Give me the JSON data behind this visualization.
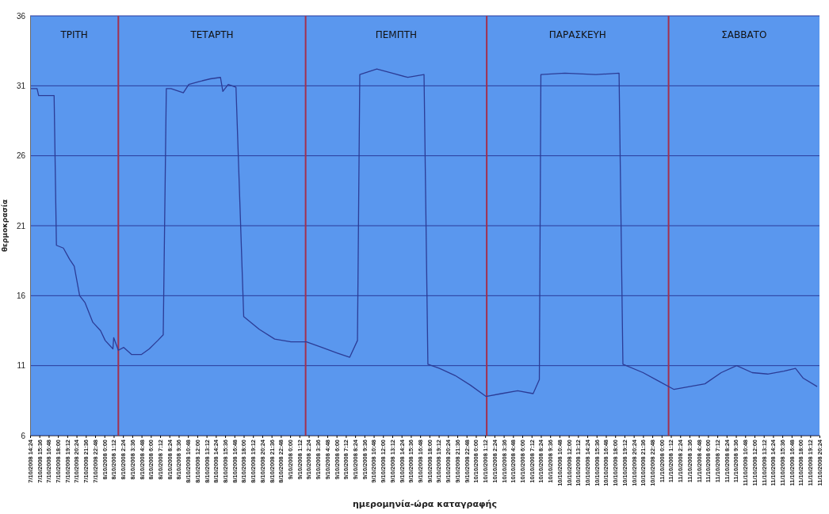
{
  "chart_data": {
    "type": "line",
    "xlabel": "ημερομηνία-ώρα καταγραφής",
    "ylabel": "θερμοκρασία",
    "x": [
      "2008-10-07T14:30",
      "2008-10-07T15:18",
      "2008-10-07T15:30",
      "2008-10-07T17:30",
      "2008-10-07T17:48",
      "2008-10-07T18:42",
      "2008-10-07T19:30",
      "2008-10-07T20:06",
      "2008-10-07T20:48",
      "2008-10-07T21:30",
      "2008-10-07T22:30",
      "2008-10-07T23:30",
      "2008-10-08T00:06",
      "2008-10-08T01:06",
      "2008-10-08T01:12",
      "2008-10-08T01:48",
      "2008-10-08T02:30",
      "2008-10-08T03:30",
      "2008-10-08T04:48",
      "2008-10-08T05:48",
      "2008-10-08T06:54",
      "2008-10-08T07:36",
      "2008-10-08T08:00",
      "2008-10-08T08:36",
      "2008-10-08T10:12",
      "2008-10-08T10:54",
      "2008-10-08T12:12",
      "2008-10-08T13:42",
      "2008-10-08T15:00",
      "2008-10-08T15:18",
      "2008-10-08T16:00",
      "2008-10-08T17:00",
      "2008-10-08T18:00",
      "2008-10-08T20:00",
      "2008-10-08T22:00",
      "2008-10-09T00:06",
      "2008-10-09T02:06",
      "2008-10-09T04:06",
      "2008-10-09T06:06",
      "2008-10-09T07:42",
      "2008-10-09T08:42",
      "2008-10-09T09:00",
      "2008-10-09T11:12",
      "2008-10-09T13:12",
      "2008-10-09T15:12",
      "2008-10-09T17:18",
      "2008-10-09T17:48",
      "2008-10-09T19:18",
      "2008-10-09T21:18",
      "2008-10-09T23:18",
      "2008-10-10T01:18",
      "2008-10-10T03:18",
      "2008-10-10T05:24",
      "2008-10-10T07:24",
      "2008-10-10T08:12",
      "2008-10-10T08:24",
      "2008-10-10T11:30",
      "2008-10-10T15:30",
      "2008-10-10T18:30",
      "2008-10-10T19:00",
      "2008-10-10T21:36",
      "2008-10-10T23:36",
      "2008-10-11T01:36",
      "2008-10-11T03:36",
      "2008-10-11T05:36",
      "2008-10-11T07:42",
      "2008-10-11T09:42",
      "2008-10-11T11:42",
      "2008-10-11T13:42",
      "2008-10-11T15:48",
      "2008-10-11T17:18",
      "2008-10-11T18:18",
      "2008-10-11T20:06"
    ],
    "values": [
      30.8,
      30.8,
      30.3,
      30.3,
      19.6,
      19.4,
      18.6,
      18.1,
      16.0,
      15.5,
      14.1,
      13.5,
      12.8,
      12.2,
      13.0,
      12.1,
      12.3,
      11.8,
      11.8,
      12.2,
      12.8,
      13.2,
      30.8,
      30.8,
      30.5,
      31.1,
      31.3,
      31.5,
      31.6,
      30.6,
      31.1,
      30.9,
      14.5,
      13.6,
      12.9,
      12.7,
      12.7,
      12.3,
      11.9,
      11.6,
      12.8,
      31.8,
      32.2,
      31.9,
      31.6,
      31.8,
      11.1,
      10.8,
      10.3,
      9.6,
      8.8,
      9.0,
      9.2,
      9.0,
      10.0,
      31.8,
      31.9,
      31.8,
      31.9,
      11.1,
      10.5,
      9.9,
      9.3,
      9.5,
      9.7,
      10.5,
      11.0,
      10.5,
      10.4,
      10.6,
      10.8,
      10.1,
      9.5
    ],
    "color": "#2c3c96",
    "xlim": [
      "2008-10-07T14:24",
      "2008-10-11T20:24"
    ],
    "ylim": [
      6,
      36
    ],
    "yticks": [
      6,
      11,
      16,
      21,
      26,
      31,
      36
    ],
    "grid": "y",
    "xticks": [
      {
        "value": "2008-10-07T14:24",
        "label": "7/10/2008 14:24"
      },
      {
        "value": "2008-10-07T15:36",
        "label": "7/10/2008 15:36"
      },
      {
        "value": "2008-10-07T16:48",
        "label": "7/10/2008 16:48"
      },
      {
        "value": "2008-10-07T18:00",
        "label": "7/10/2008 18:00"
      },
      {
        "value": "2008-10-07T19:12",
        "label": "7/10/2008 19:12"
      },
      {
        "value": "2008-10-07T20:24",
        "label": "7/10/2008 20:24"
      },
      {
        "value": "2008-10-07T21:36",
        "label": "7/10/2008 21:36"
      },
      {
        "value": "2008-10-07T22:48",
        "label": "7/10/2008 22:48"
      },
      {
        "value": "2008-10-08T00:00",
        "label": "8/10/2008 0:00"
      },
      {
        "value": "2008-10-08T01:12",
        "label": "8/10/2008 1:12"
      },
      {
        "value": "2008-10-08T02:24",
        "label": "8/10/2008 2:24"
      },
      {
        "value": "2008-10-08T03:36",
        "label": "8/10/2008 3:36"
      },
      {
        "value": "2008-10-08T04:48",
        "label": "8/10/2008 4:48"
      },
      {
        "value": "2008-10-08T06:00",
        "label": "8/10/2008 6:00"
      },
      {
        "value": "2008-10-08T07:12",
        "label": "8/10/2008 7:12"
      },
      {
        "value": "2008-10-08T08:24",
        "label": "8/10/2008 8:24"
      },
      {
        "value": "2008-10-08T09:36",
        "label": "8/10/2008 9:36"
      },
      {
        "value": "2008-10-08T10:48",
        "label": "8/10/2008 10:48"
      },
      {
        "value": "2008-10-08T12:00",
        "label": "8/10/2008 12:00"
      },
      {
        "value": "2008-10-08T13:12",
        "label": "8/10/2008 13:12"
      },
      {
        "value": "2008-10-08T14:24",
        "label": "8/10/2008 14:24"
      },
      {
        "value": "2008-10-08T15:36",
        "label": "8/10/2008 15:36"
      },
      {
        "value": "2008-10-08T16:48",
        "label": "8/10/2008 16:48"
      },
      {
        "value": "2008-10-08T18:00",
        "label": "8/10/2008 18:00"
      },
      {
        "value": "2008-10-08T19:12",
        "label": "8/10/2008 19:12"
      },
      {
        "value": "2008-10-08T20:24",
        "label": "8/10/2008 20:24"
      },
      {
        "value": "2008-10-08T21:36",
        "label": "8/10/2008 21:36"
      },
      {
        "value": "2008-10-08T22:48",
        "label": "8/10/2008 22:48"
      },
      {
        "value": "2008-10-09T00:00",
        "label": "9/10/2008 0:00"
      },
      {
        "value": "2008-10-09T01:12",
        "label": "9/10/2008 1:12"
      },
      {
        "value": "2008-10-09T02:24",
        "label": "9/10/2008 2:24"
      },
      {
        "value": "2008-10-09T03:36",
        "label": "9/10/2008 3:36"
      },
      {
        "value": "2008-10-09T04:48",
        "label": "9/10/2008 4:48"
      },
      {
        "value": "2008-10-09T06:00",
        "label": "9/10/2008 6:00"
      },
      {
        "value": "2008-10-09T07:12",
        "label": "9/10/2008 7:12"
      },
      {
        "value": "2008-10-09T08:24",
        "label": "9/10/2008 8:24"
      },
      {
        "value": "2008-10-09T09:36",
        "label": "9/10/2008 9:36"
      },
      {
        "value": "2008-10-09T10:48",
        "label": "9/10/2008 10:48"
      },
      {
        "value": "2008-10-09T12:00",
        "label": "9/10/2008 12:00"
      },
      {
        "value": "2008-10-09T13:12",
        "label": "9/10/2008 13:12"
      },
      {
        "value": "2008-10-09T14:24",
        "label": "9/10/2008 14:24"
      },
      {
        "value": "2008-10-09T15:36",
        "label": "9/10/2008 15:36"
      },
      {
        "value": "2008-10-09T16:48",
        "label": "9/10/2008 16:48"
      },
      {
        "value": "2008-10-09T18:00",
        "label": "9/10/2008 18:00"
      },
      {
        "value": "2008-10-09T19:12",
        "label": "9/10/2008 19:12"
      },
      {
        "value": "2008-10-09T20:24",
        "label": "9/10/2008 20:24"
      },
      {
        "value": "2008-10-09T21:36",
        "label": "9/10/2008 21:36"
      },
      {
        "value": "2008-10-09T22:48",
        "label": "9/10/2008 22:48"
      },
      {
        "value": "2008-10-10T00:00",
        "label": "10/10/2008 0:00"
      },
      {
        "value": "2008-10-10T01:12",
        "label": "10/10/2008 1:12"
      },
      {
        "value": "2008-10-10T02:24",
        "label": "10/10/2008 2:24"
      },
      {
        "value": "2008-10-10T03:36",
        "label": "10/10/2008 3:36"
      },
      {
        "value": "2008-10-10T04:48",
        "label": "10/10/2008 4:48"
      },
      {
        "value": "2008-10-10T06:00",
        "label": "10/10/2008 6:00"
      },
      {
        "value": "2008-10-10T07:12",
        "label": "10/10/2008 7:12"
      },
      {
        "value": "2008-10-10T08:24",
        "label": "10/10/2008 8:24"
      },
      {
        "value": "2008-10-10T09:36",
        "label": "10/10/2008 9:36"
      },
      {
        "value": "2008-10-10T10:48",
        "label": "10/10/2008 10:48"
      },
      {
        "value": "2008-10-10T12:00",
        "label": "10/10/2008 12:00"
      },
      {
        "value": "2008-10-10T13:12",
        "label": "10/10/2008 13:12"
      },
      {
        "value": "2008-10-10T14:24",
        "label": "10/10/2008 14:24"
      },
      {
        "value": "2008-10-10T15:36",
        "label": "10/10/2008 15:36"
      },
      {
        "value": "2008-10-10T16:48",
        "label": "10/10/2008 16:48"
      },
      {
        "value": "2008-10-10T18:00",
        "label": "10/10/2008 18:00"
      },
      {
        "value": "2008-10-10T19:12",
        "label": "10/10/2008 19:12"
      },
      {
        "value": "2008-10-10T20:24",
        "label": "10/10/2008 20:24"
      },
      {
        "value": "2008-10-10T21:36",
        "label": "10/10/2008 21:36"
      },
      {
        "value": "2008-10-10T22:48",
        "label": "10/10/2008 22:48"
      },
      {
        "value": "2008-10-11T00:00",
        "label": "11/10/2008 0:00"
      },
      {
        "value": "2008-10-11T01:12",
        "label": "11/10/2008 1:12"
      },
      {
        "value": "2008-10-11T02:24",
        "label": "11/10/2008 2:24"
      },
      {
        "value": "2008-10-11T03:36",
        "label": "11/10/2008 3:36"
      },
      {
        "value": "2008-10-11T04:48",
        "label": "11/10/2008 4:48"
      },
      {
        "value": "2008-10-11T06:00",
        "label": "11/10/2008 6:00"
      },
      {
        "value": "2008-10-11T07:12",
        "label": "11/10/2008 7:12"
      },
      {
        "value": "2008-10-11T08:24",
        "label": "11/10/2008 8:24"
      },
      {
        "value": "2008-10-11T09:36",
        "label": "11/10/2008 9:36"
      },
      {
        "value": "2008-10-11T10:48",
        "label": "11/10/2008 10:48"
      },
      {
        "value": "2008-10-11T12:00",
        "label": "11/10/2008 12:00"
      },
      {
        "value": "2008-10-11T13:12",
        "label": "11/10/2008 13:12"
      },
      {
        "value": "2008-10-11T14:24",
        "label": "11/10/2008 14:24"
      },
      {
        "value": "2008-10-11T15:36",
        "label": "11/10/2008 15:36"
      },
      {
        "value": "2008-10-11T16:48",
        "label": "11/10/2008 16:48"
      },
      {
        "value": "2008-10-11T18:00",
        "label": "11/10/2008 18:00"
      },
      {
        "value": "2008-10-11T19:12",
        "label": "11/10/2008 19:12"
      },
      {
        "value": "2008-10-11T20:24",
        "label": "11/10/2008 20:24"
      }
    ],
    "ref_lines": [
      {
        "axis": "x",
        "value": "2008-10-08T01:48",
        "color": "#a3304e"
      },
      {
        "axis": "x",
        "value": "2008-10-09T02:00",
        "color": "#a3304e"
      },
      {
        "axis": "x",
        "value": "2008-10-10T01:24",
        "color": "#a3304e"
      },
      {
        "axis": "x",
        "value": "2008-10-11T00:54",
        "color": "#a3304e"
      }
    ],
    "annotations": [
      "ΤΡΙΤΗ",
      "ΤΕΤΑΡΤΗ",
      "ΠΕΜΠΤΗ",
      "ΠΑΡΑΣΚΕΥΗ",
      "ΣΑΒΒΑΤΟ"
    ]
  }
}
